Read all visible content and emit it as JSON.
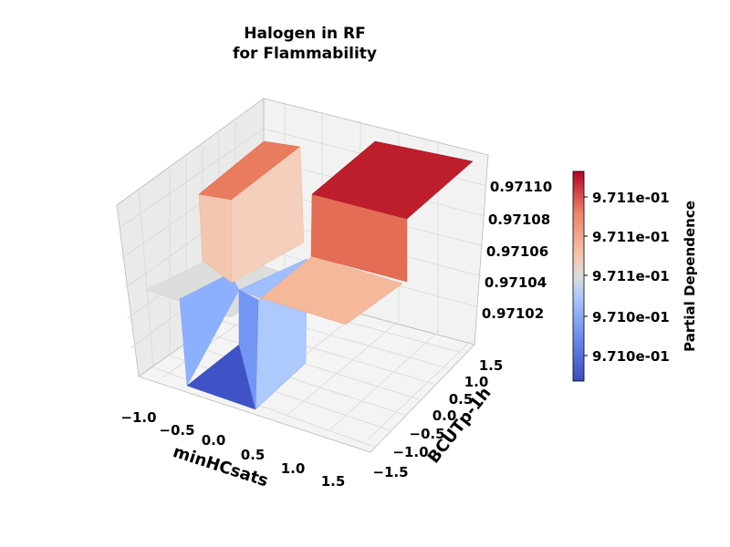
{
  "chart_data": {
    "type": "surface",
    "title_line1": "Halogen in RF",
    "title_line2": "for Flammability",
    "xlabel": "minHCsats",
    "ylabel": "BCUTp-1h",
    "zlabel": "",
    "colorbar_label": "Partial Dependence",
    "colormap": "coolwarm",
    "x_ticks": [
      "−1.0",
      "−0.5",
      "0.0",
      "0.5",
      "1.0",
      "1.5"
    ],
    "y_ticks": [
      "−1.5",
      "−1.0",
      "−0.5",
      "0.0",
      "0.5",
      "1.0",
      "1.5"
    ],
    "z_ticks": [
      "0.97102",
      "0.97104",
      "0.97106",
      "0.97108",
      "0.97110"
    ],
    "colorbar_ticks": [
      "9.710e-01",
      "9.710e-01",
      "9.711e-01",
      "9.711e-01",
      "9.711e-01"
    ],
    "xlim": [
      -1.2,
      1.7
    ],
    "ylim": [
      -1.7,
      1.7
    ],
    "zlim": [
      0.971005,
      0.971115
    ],
    "x_step": 0.0,
    "y_step": 0.0,
    "surface_levels": [
      {
        "region": "x<0, y<0",
        "value": 0.971008
      },
      {
        "region": "x<0, y>0",
        "value": 0.971071
      },
      {
        "region": "x>0, y<0",
        "value": 0.971029
      },
      {
        "region": "x>0, y>0",
        "value": 0.971111
      },
      {
        "region": "x<0 rear strip",
        "value": 0.97105
      }
    ],
    "grid": true
  }
}
